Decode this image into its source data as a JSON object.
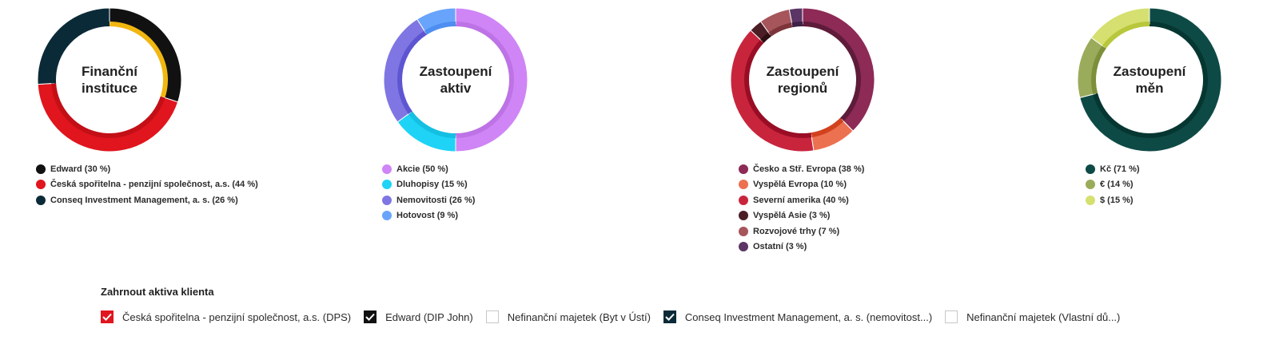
{
  "charts": [
    {
      "title": "Finanční\ninstituce",
      "segments": [
        {
          "label": "Edward (30 %)",
          "value": 30,
          "color": "#111111",
          "inner": "#f1b710"
        },
        {
          "label": "Česká spořitelna - penzijní společnost, a.s. (44 %)",
          "value": 44,
          "color": "#e0151d",
          "inner": "#c30f16"
        },
        {
          "label": "Conseq Investment Management, a. s. (26 %)",
          "value": 26,
          "color": "#0b2a38",
          "inner": "#0b2a38"
        }
      ]
    },
    {
      "title": "Zastoupení\naktiv",
      "segments": [
        {
          "label": "Akcie (50 %)",
          "value": 50,
          "color": "#cf85f6",
          "inner": "#bd72e6"
        },
        {
          "label": "Dluhopisy (15 %)",
          "value": 15,
          "color": "#1ed3f6",
          "inner": "#14bfe2"
        },
        {
          "label": "Nemovitosti (26 %)",
          "value": 26,
          "color": "#7f76e3",
          "inner": "#5e55d2"
        },
        {
          "label": "Hotovost (9 %)",
          "value": 9,
          "color": "#68a4fb",
          "inner": "#4d8ef0"
        }
      ]
    },
    {
      "title": "Zastoupení\nregionů",
      "segments": [
        {
          "label": "Česko a Stř. Evropa (38 %)",
          "value": 38,
          "color": "#8d2a56",
          "inner": "#5e1b3a"
        },
        {
          "label": "Vyspělá Evropa (10 %)",
          "value": 10,
          "color": "#ec7150",
          "inner": "#d2411e"
        },
        {
          "label": "Severní amerika (40 %)",
          "value": 40,
          "color": "#c8253d",
          "inner": "#990d25"
        },
        {
          "label": "Vyspělá Asie (3 %)",
          "value": 3,
          "color": "#4b1d25",
          "inner": "#2e0e13"
        },
        {
          "label": "Rozvojové trhy (7 %)",
          "value": 7,
          "color": "#a6555b",
          "inner": "#7d343a"
        },
        {
          "label": "Ostatní (3 %)",
          "value": 3,
          "color": "#5b3566",
          "inner": "#3d2146"
        }
      ]
    },
    {
      "title": "Zastoupení\nměn",
      "segments": [
        {
          "label": "Kč (71 %)",
          "value": 71,
          "color": "#0e4a45",
          "inner": "#063631"
        },
        {
          "label": "€ (14 %)",
          "value": 14,
          "color": "#9aac5b",
          "inner": "#7c8f39"
        },
        {
          "label": "$ (15 %)",
          "value": 15,
          "color": "#d5e070",
          "inner": "#b8c73b"
        }
      ]
    }
  ],
  "include": {
    "heading": "Zahrnout aktiva klienta",
    "items": [
      {
        "label": "Česká spořitelna - penzijní společnost, a.s. (DPS)",
        "checked": true,
        "color": "#e0151d"
      },
      {
        "label": "Edward (DIP John)",
        "checked": true,
        "color": "#111111"
      },
      {
        "label": "Nefinanční majetek (Byt v Ústí)",
        "checked": false,
        "color": ""
      },
      {
        "label": "Conseq Investment Management, a. s. (nemovitost...)",
        "checked": true,
        "color": "#0b2a38"
      },
      {
        "label": "Nefinanční majetek (Vlastní dů...)",
        "checked": false,
        "color": ""
      }
    ]
  }
}
